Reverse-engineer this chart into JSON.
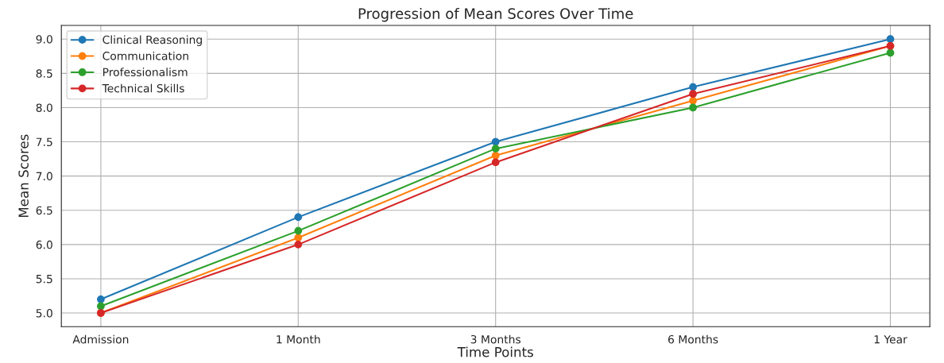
{
  "chart_data": {
    "type": "line",
    "title": "Progression of Mean Scores Over Time",
    "xlabel": "Time Points",
    "ylabel": "Mean Scores",
    "categories": [
      "Admission",
      "1 Month",
      "3 Months",
      "6 Months",
      "1 Year"
    ],
    "series": [
      {
        "name": "Clinical Reasoning",
        "color": "#1f77b4",
        "values": [
          5.2,
          6.4,
          7.5,
          8.3,
          9.0
        ]
      },
      {
        "name": "Communication",
        "color": "#ff7f0e",
        "values": [
          5.0,
          6.1,
          7.3,
          8.1,
          8.9
        ]
      },
      {
        "name": "Professionalism",
        "color": "#2ca02c",
        "values": [
          5.1,
          6.2,
          7.4,
          8.0,
          8.8
        ]
      },
      {
        "name": "Technical Skills",
        "color": "#d62728",
        "values": [
          5.0,
          6.0,
          7.2,
          8.2,
          8.9
        ]
      }
    ],
    "ylim": [
      4.8,
      9.2
    ],
    "yticks": [
      {
        "value": 5,
        "label": "5.0"
      },
      5.5,
      {
        "value": 6,
        "label": "6.0"
      },
      6.5,
      {
        "value": 7,
        "label": "7.0"
      },
      7.5,
      {
        "value": 8,
        "label": "8.0"
      },
      8.5,
      {
        "value": 9,
        "label": "9.0"
      }
    ],
    "grid": true,
    "legend": "top left",
    "marker": "circle",
    "line_style": "solid"
  }
}
